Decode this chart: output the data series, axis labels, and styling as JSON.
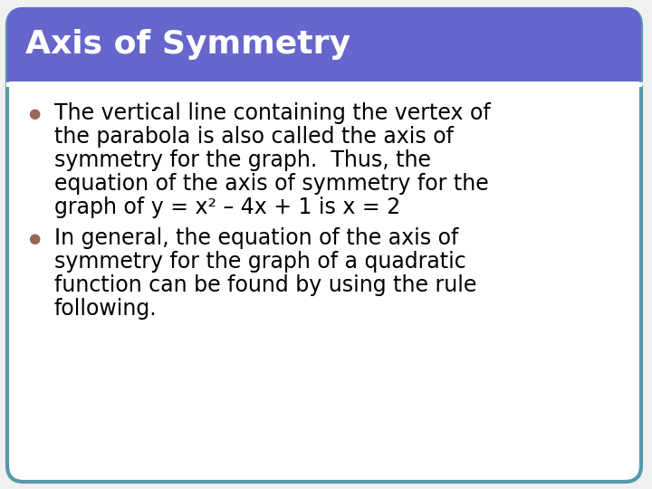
{
  "title": "Axis of Symmetry",
  "title_color": "#ffffff",
  "title_bg_color": "#6666cc",
  "title_fontsize": 26,
  "body_bg_color": "#ffffff",
  "border_color": "#5599aa",
  "bullet_color": "#996655",
  "bullet1_lines": [
    "The vertical line containing the vertex of",
    "the parabola is also called the axis of",
    "symmetry for the graph.  Thus, the",
    "equation of the axis of symmetry for the",
    "graph of y = x² – 4x + 1 is x = 2"
  ],
  "bullet2_lines": [
    "In general, the equation of the axis of",
    "symmetry for the graph of a quadratic",
    "function can be found by using the rule",
    "following."
  ],
  "body_fontsize": 17,
  "fig_bg_color": "#f0f0f0"
}
